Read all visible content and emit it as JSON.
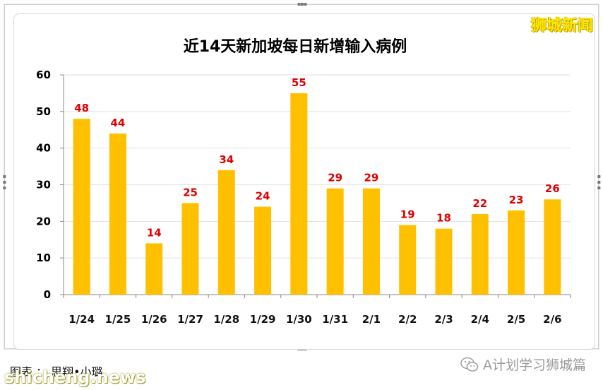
{
  "brand": "狮城新闻",
  "caption": "图表 ： 思翔•小璐",
  "watermark": "shicheng.news",
  "source_account": "A计划学习狮城篇",
  "colors": {
    "bar": "#ffc000",
    "data_label": "#e00000",
    "grid": "#e2e2e2"
  },
  "chart_data": {
    "type": "bar",
    "title": "近14天新加坡每日新增输入病例",
    "categories": [
      "1/24",
      "1/25",
      "1/26",
      "1/27",
      "1/28",
      "1/29",
      "1/30",
      "1/31",
      "2/1",
      "2/2",
      "2/3",
      "2/4",
      "2/5",
      "2/6"
    ],
    "values": [
      48,
      44,
      14,
      25,
      34,
      24,
      55,
      29,
      29,
      19,
      18,
      22,
      23,
      26
    ],
    "ylim": [
      0,
      60
    ],
    "yticks": [
      0,
      10,
      20,
      30,
      40,
      50,
      60
    ],
    "grid": true,
    "legend": "none",
    "data_labels": true
  }
}
